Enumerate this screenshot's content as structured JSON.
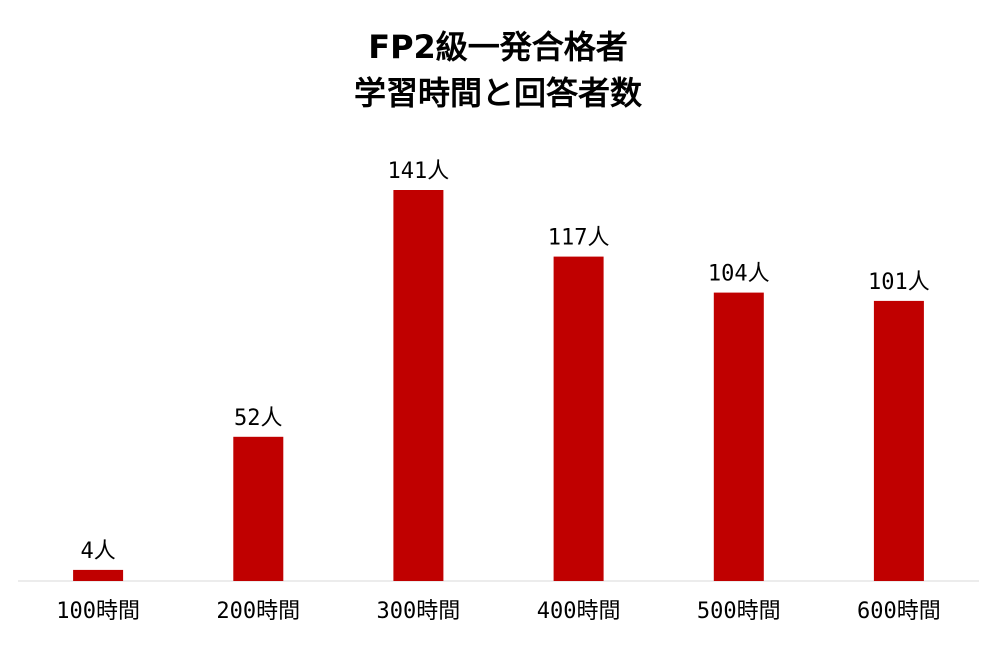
{
  "chart_data": {
    "type": "bar",
    "title": [
      "FP2級一発合格者",
      "学習時間と回答者数"
    ],
    "categories": [
      "100時間",
      "200時間",
      "300時間",
      "400時間",
      "500時間",
      "600時間"
    ],
    "values": [
      4,
      52,
      141,
      117,
      104,
      101
    ],
    "value_suffix": "人",
    "xlabel": "",
    "ylabel": "",
    "ylim": [
      0,
      141
    ],
    "grid": false,
    "legend": "none",
    "bar_color": "#C00000",
    "axis_color": "#D9D9D9"
  }
}
